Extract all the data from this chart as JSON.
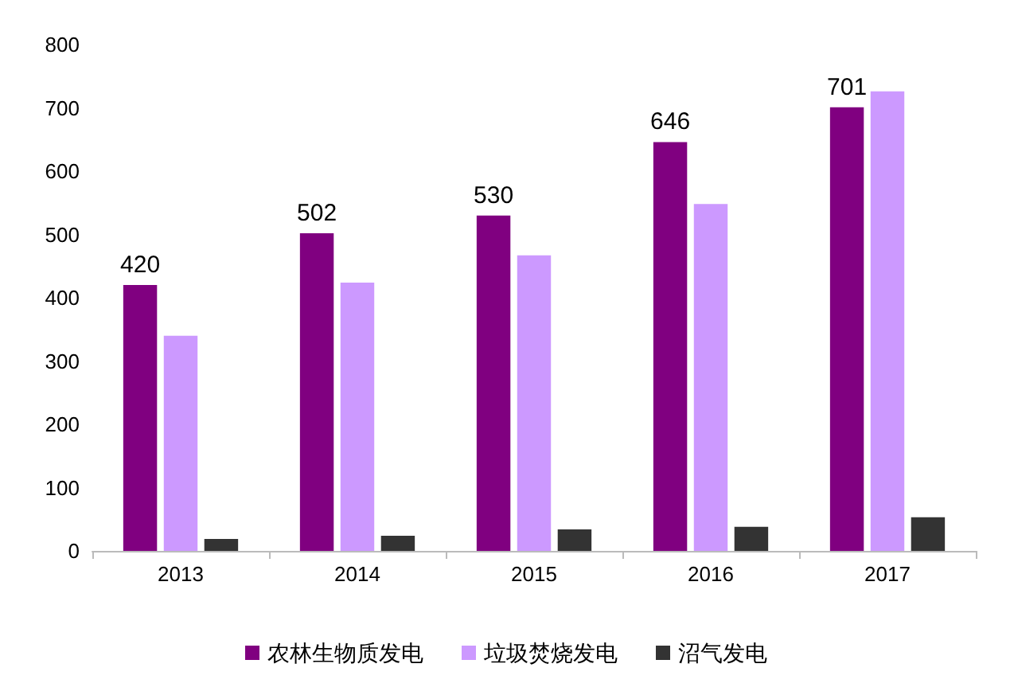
{
  "chart_data": {
    "type": "bar",
    "categories": [
      "2013",
      "2014",
      "2015",
      "2016",
      "2017"
    ],
    "series": [
      {
        "name": "农林生物质发电",
        "color": "#800080",
        "values": [
          420,
          502,
          530,
          646,
          701
        ],
        "value_labels": [
          "420",
          "502",
          "530",
          "646",
          "701"
        ]
      },
      {
        "name": "垃圾焚烧发电",
        "color": "#cc99ff",
        "values": [
          340,
          424,
          467,
          548,
          726
        ]
      },
      {
        "name": "沼气发电",
        "color": "#333333",
        "values": [
          19,
          24,
          34,
          38,
          53
        ]
      }
    ],
    "ylim": [
      0,
      800
    ],
    "yticks": [
      0,
      100,
      200,
      300,
      400,
      500,
      600,
      700,
      800
    ],
    "grid": false,
    "legend": "bottom"
  }
}
